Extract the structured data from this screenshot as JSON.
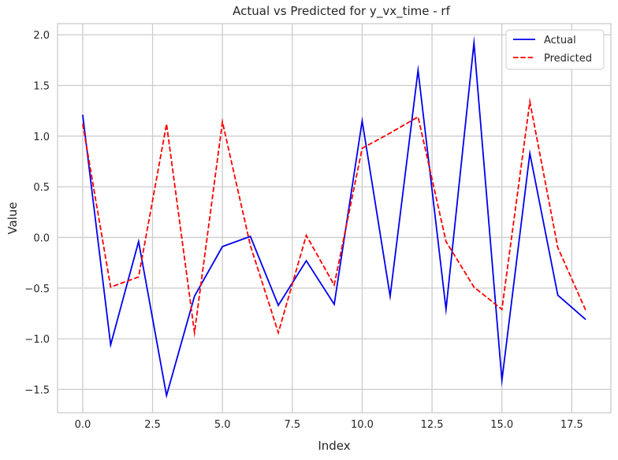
{
  "chart_data": {
    "type": "line",
    "title": "Actual vs Predicted for y_vx_time - rf",
    "xlabel": "Index",
    "ylabel": "Value",
    "xlim": [
      -0.9,
      18.9
    ],
    "ylim": [
      -1.73,
      2.11
    ],
    "x_ticks": [
      0.0,
      2.5,
      5.0,
      7.5,
      10.0,
      12.5,
      15.0,
      17.5
    ],
    "x_tick_labels": [
      "0.0",
      "2.5",
      "5.0",
      "7.5",
      "10.0",
      "12.5",
      "15.0",
      "17.5"
    ],
    "y_ticks": [
      -1.5,
      -1.0,
      -0.5,
      0.0,
      0.5,
      1.0,
      1.5,
      2.0
    ],
    "y_tick_labels": [
      "−1.5",
      "−1.0",
      "−0.5",
      "0.0",
      "0.5",
      "1.0",
      "1.5",
      "2.0"
    ],
    "grid": true,
    "legend_position": "top-right",
    "x": [
      0,
      1,
      2,
      3,
      4,
      5,
      6,
      7,
      8,
      9,
      10,
      11,
      12,
      13,
      14,
      15,
      16,
      17,
      18
    ],
    "series": [
      {
        "name": "Actual",
        "color": "#0000ee",
        "style": "solid",
        "values": [
          1.21,
          -1.06,
          -0.04,
          -1.56,
          -0.58,
          -0.09,
          0.01,
          -0.67,
          -0.23,
          -0.66,
          1.15,
          -0.58,
          1.65,
          -0.71,
          1.92,
          -1.41,
          0.83,
          -0.57,
          -0.81
        ]
      },
      {
        "name": "Predicted",
        "color": "#ff0000",
        "style": "dashed",
        "values": [
          1.12,
          -0.49,
          -0.39,
          1.12,
          -0.94,
          1.14,
          -0.08,
          -0.94,
          0.02,
          -0.47,
          0.88,
          1.03,
          1.19,
          -0.04,
          -0.49,
          -0.71,
          1.34,
          -0.1,
          -0.72
        ]
      }
    ]
  }
}
